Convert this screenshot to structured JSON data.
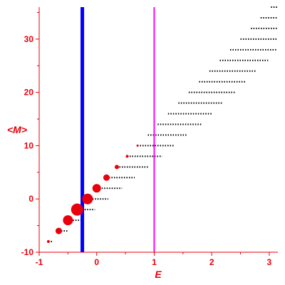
{
  "chart_data": {
    "type": "scatter",
    "xlabel": "E",
    "ylabel": "<M>",
    "xlim": [
      -1,
      3.15
    ],
    "ylim": [
      -10,
      36
    ],
    "xticks": [
      -1,
      0,
      1,
      2,
      3
    ],
    "yticks": [
      -10,
      0,
      10,
      20,
      30
    ],
    "colors": {
      "axis": "#e8000b",
      "text": "#e8000b",
      "dots": "#000000",
      "markers": "#e8000b",
      "vline_blue": "#0000ff",
      "vline_magenta": "#ff00ff"
    },
    "vlines": [
      {
        "x": -0.25,
        "color": "#0000ff",
        "width": 5
      },
      {
        "x": 1.0,
        "color": "#ff00ff",
        "width": 2
      }
    ],
    "markers": [
      {
        "x": -0.84,
        "y": -8,
        "r": 2
      },
      {
        "x": -0.66,
        "y": -6,
        "r": 4.5
      },
      {
        "x": -0.5,
        "y": -4,
        "r": 7
      },
      {
        "x": -0.34,
        "y": -2,
        "r": 8.5
      },
      {
        "x": -0.16,
        "y": 0,
        "r": 7.5
      },
      {
        "x": 0.0,
        "y": 2,
        "r": 6
      },
      {
        "x": 0.17,
        "y": 4,
        "r": 4.5
      },
      {
        "x": 0.35,
        "y": 6,
        "r": 3
      },
      {
        "x": 0.53,
        "y": 8,
        "r": 2
      },
      {
        "x": 0.71,
        "y": 10,
        "r": 1.5
      }
    ],
    "dot_rows": [
      {
        "y": -8,
        "x_start": -0.84,
        "x_end": -0.77
      },
      {
        "y": -6,
        "x_start": -0.66,
        "x_end": -0.5
      },
      {
        "y": -4,
        "x_start": -0.5,
        "x_end": -0.28
      },
      {
        "y": -2,
        "x_start": -0.34,
        "x_end": -0.03
      },
      {
        "y": 0,
        "x_start": -0.16,
        "x_end": 0.2
      },
      {
        "y": 2,
        "x_start": 0.0,
        "x_end": 0.44
      },
      {
        "y": 4,
        "x_start": 0.17,
        "x_end": 0.66
      },
      {
        "y": 6,
        "x_start": 0.35,
        "x_end": 0.9
      },
      {
        "y": 8,
        "x_start": 0.53,
        "x_end": 1.14
      },
      {
        "y": 10,
        "x_start": 0.71,
        "x_end": 1.36
      },
      {
        "y": 12,
        "x_start": 0.89,
        "x_end": 1.58
      },
      {
        "y": 14,
        "x_start": 1.06,
        "x_end": 1.82
      },
      {
        "y": 16,
        "x_start": 1.24,
        "x_end": 2.02
      },
      {
        "y": 18,
        "x_start": 1.42,
        "x_end": 2.2
      },
      {
        "y": 20,
        "x_start": 1.6,
        "x_end": 2.4
      },
      {
        "y": 22,
        "x_start": 1.78,
        "x_end": 2.6
      },
      {
        "y": 24,
        "x_start": 1.96,
        "x_end": 2.78
      },
      {
        "y": 26,
        "x_start": 2.14,
        "x_end": 2.98
      },
      {
        "y": 28,
        "x_start": 2.32,
        "x_end": 3.12
      },
      {
        "y": 30,
        "x_start": 2.5,
        "x_end": 3.14
      },
      {
        "y": 32,
        "x_start": 2.68,
        "x_end": 3.14
      },
      {
        "y": 34,
        "x_start": 2.85,
        "x_end": 3.14
      },
      {
        "y": 36,
        "x_start": 3.03,
        "x_end": 3.14
      }
    ]
  }
}
